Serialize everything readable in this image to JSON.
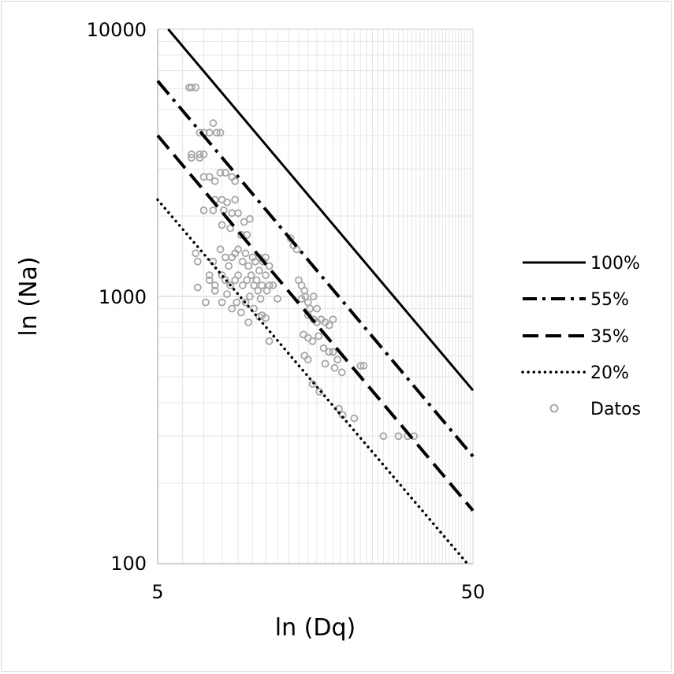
{
  "chart_data": {
    "type": "scatter",
    "x_scale": "log",
    "y_scale": "log",
    "xlim": [
      5,
      50
    ],
    "ylim": [
      100,
      10000
    ],
    "xlabel": "ln (Dq)",
    "ylabel": "ln (Na)",
    "x_tick_labels": [
      "5",
      "50"
    ],
    "y_tick_labels": [
      "100",
      "1000",
      "10000"
    ],
    "grid": true,
    "legend_position": "right",
    "series": [
      {
        "name": "100%",
        "style": "solid",
        "color": "#000000",
        "x": [
          5.4,
          50
        ],
        "y": [
          10000,
          445
        ]
      },
      {
        "name": "55%",
        "style": "dashdot",
        "color": "#000000",
        "x": [
          5,
          50
        ],
        "y": [
          6400,
          252
        ]
      },
      {
        "name": "35%",
        "style": "dash",
        "color": "#000000",
        "x": [
          5,
          50
        ],
        "y": [
          4000,
          158
        ]
      },
      {
        "name": "20%",
        "style": "dot",
        "color": "#000000",
        "x": [
          5,
          48
        ],
        "y": [
          2300,
          100
        ]
      },
      {
        "name": "Datos",
        "style": "marker",
        "color": "#a6a6a6",
        "points": [
          [
            6.3,
            6050
          ],
          [
            6.4,
            6050
          ],
          [
            6.6,
            6050
          ],
          [
            6.8,
            4100
          ],
          [
            7.0,
            4100
          ],
          [
            7.3,
            4100
          ],
          [
            7.5,
            4450
          ],
          [
            7.7,
            4100
          ],
          [
            7.9,
            4100
          ],
          [
            6.4,
            3400
          ],
          [
            6.8,
            3400
          ],
          [
            7.0,
            3400
          ],
          [
            6.4,
            3300
          ],
          [
            6.8,
            3300
          ],
          [
            7.0,
            2800
          ],
          [
            7.3,
            2800
          ],
          [
            7.6,
            2700
          ],
          [
            7.9,
            2900
          ],
          [
            8.2,
            2900
          ],
          [
            8.6,
            2800
          ],
          [
            8.8,
            2700
          ],
          [
            7.6,
            2300
          ],
          [
            8.0,
            2300
          ],
          [
            8.3,
            2250
          ],
          [
            8.8,
            2300
          ],
          [
            7.0,
            2100
          ],
          [
            7.5,
            2100
          ],
          [
            8.1,
            2100
          ],
          [
            8.6,
            2050
          ],
          [
            9.0,
            2050
          ],
          [
            9.4,
            1900
          ],
          [
            9.8,
            1950
          ],
          [
            8.0,
            1850
          ],
          [
            8.5,
            1800
          ],
          [
            9.2,
            1700
          ],
          [
            9.6,
            1700
          ],
          [
            6.7,
            1350
          ],
          [
            6.6,
            1450
          ],
          [
            7.3,
            1200
          ],
          [
            7.5,
            1350
          ],
          [
            7.9,
            1500
          ],
          [
            8.2,
            1400
          ],
          [
            8.4,
            1300
          ],
          [
            8.6,
            1400
          ],
          [
            8.8,
            1450
          ],
          [
            9.0,
            1500
          ],
          [
            9.3,
            1350
          ],
          [
            9.5,
            1450
          ],
          [
            9.7,
            1300
          ],
          [
            10.0,
            1400
          ],
          [
            10.2,
            1350
          ],
          [
            10.5,
            1400
          ],
          [
            10.8,
            1350
          ],
          [
            11.0,
            1400
          ],
          [
            11.3,
            1300
          ],
          [
            7.3,
            1150
          ],
          [
            7.6,
            1100
          ],
          [
            8.0,
            1200
          ],
          [
            8.2,
            1150
          ],
          [
            8.5,
            1100
          ],
          [
            8.8,
            1150
          ],
          [
            9.0,
            1200
          ],
          [
            9.3,
            1100
          ],
          [
            9.6,
            1150
          ],
          [
            9.9,
            1200
          ],
          [
            10.1,
            1100
          ],
          [
            10.3,
            1150
          ],
          [
            10.5,
            1250
          ],
          [
            10.7,
            1100
          ],
          [
            11.0,
            1200
          ],
          [
            11.3,
            1100
          ],
          [
            11.6,
            1100
          ],
          [
            6.7,
            1080
          ],
          [
            7.1,
            950
          ],
          [
            7.6,
            1050
          ],
          [
            8.0,
            950
          ],
          [
            8.3,
            1020
          ],
          [
            8.6,
            900
          ],
          [
            8.9,
            950
          ],
          [
            9.2,
            870
          ],
          [
            9.5,
            950
          ],
          [
            9.8,
            1000
          ],
          [
            10.1,
            900
          ],
          [
            10.4,
            1050
          ],
          [
            10.6,
            980
          ],
          [
            11.1,
            1050
          ],
          [
            12.0,
            980
          ],
          [
            9.7,
            800
          ],
          [
            10.5,
            840
          ],
          [
            10.7,
            850
          ],
          [
            11.0,
            830
          ],
          [
            11.3,
            680
          ],
          [
            13.2,
            1650
          ],
          [
            13.5,
            1550
          ],
          [
            13.8,
            1500
          ],
          [
            14.0,
            1150
          ],
          [
            14.3,
            1100
          ],
          [
            14.6,
            1050
          ],
          [
            14.3,
            980
          ],
          [
            14.7,
            1000
          ],
          [
            15.0,
            950
          ],
          [
            15.2,
            900
          ],
          [
            15.6,
            1000
          ],
          [
            16.0,
            900
          ],
          [
            15.0,
            850
          ],
          [
            15.6,
            820
          ],
          [
            16.0,
            800
          ],
          [
            16.5,
            820
          ],
          [
            17.0,
            800
          ],
          [
            17.5,
            780
          ],
          [
            18.0,
            820
          ],
          [
            14.5,
            720
          ],
          [
            15.0,
            700
          ],
          [
            15.5,
            680
          ],
          [
            16.2,
            710
          ],
          [
            16.8,
            640
          ],
          [
            17.5,
            620
          ],
          [
            18.0,
            620
          ],
          [
            18.6,
            580
          ],
          [
            14.6,
            600
          ],
          [
            15.0,
            580
          ],
          [
            17.0,
            560
          ],
          [
            18.2,
            540
          ],
          [
            15.5,
            470
          ],
          [
            16.3,
            440
          ],
          [
            19.2,
            520
          ],
          [
            18.8,
            380
          ],
          [
            19.3,
            360
          ],
          [
            22.0,
            550
          ],
          [
            22.5,
            550
          ],
          [
            21.0,
            350
          ],
          [
            26.0,
            300
          ],
          [
            29.0,
            300
          ],
          [
            31.0,
            300
          ],
          [
            32.5,
            300
          ]
        ]
      }
    ]
  }
}
